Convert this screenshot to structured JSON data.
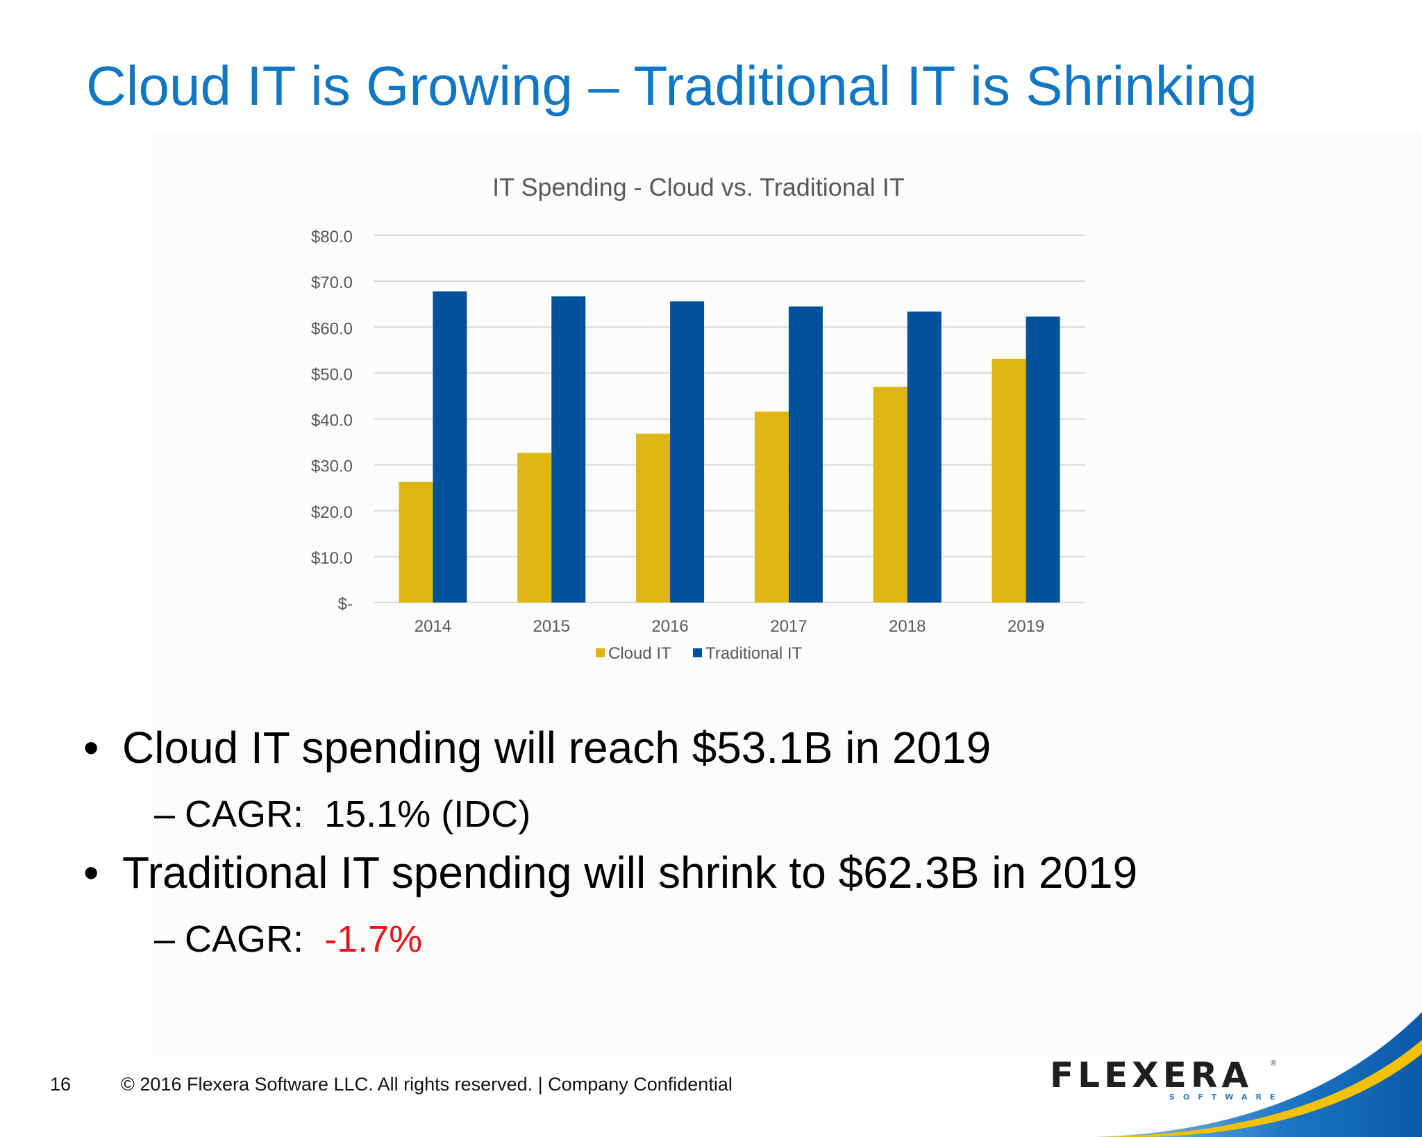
{
  "slide": {
    "title": "Cloud IT is Growing – Traditional IT is Shrinking"
  },
  "chart_data": {
    "type": "bar",
    "title": "IT Spending - Cloud vs. Traditional IT",
    "xlabel": "",
    "ylabel": "",
    "categories": [
      "2014",
      "2015",
      "2016",
      "2017",
      "2018",
      "2019"
    ],
    "series": [
      {
        "name": "Cloud IT",
        "color": "#dfb60f",
        "values": [
          26.3,
          32.6,
          36.8,
          41.6,
          47.0,
          53.1
        ]
      },
      {
        "name": "Traditional IT",
        "color": "#005298",
        "values": [
          67.8,
          66.7,
          65.6,
          64.5,
          63.4,
          62.3
        ]
      }
    ],
    "ylim": [
      0,
      80
    ],
    "yticks": [
      0,
      10,
      20,
      30,
      40,
      50,
      60,
      70,
      80
    ],
    "ytick_labels": [
      "$-",
      "$10.0",
      "$20.0",
      "$30.0",
      "$40.0",
      "$50.0",
      "$60.0",
      "$70.0",
      "$80.0"
    ],
    "grid": true,
    "legend_position": "bottom"
  },
  "bullets": {
    "b1_text": "Cloud IT spending will reach $53.1B in 2019",
    "b1_sub_label": "CAGR:",
    "b1_sub_value": "15.1% (IDC)",
    "b2_text": "Traditional IT spending will shrink to $62.3B in 2019",
    "b2_sub_label": "CAGR:",
    "b2_sub_value": "-1.7%",
    "bullet_char": "•",
    "dash_char": "–",
    "negative_color": "#e8141a"
  },
  "footer": {
    "page_number": "16",
    "copyright": "© 2016 Flexera Software LLC. All rights reserved.   |   Company Confidential"
  },
  "logo": {
    "wordmark": "FLEXERA",
    "subtext": "SOFTWARE",
    "registered": "®"
  }
}
